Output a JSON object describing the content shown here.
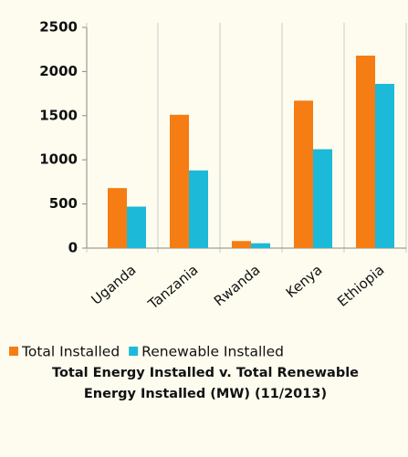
{
  "chart_data": {
    "type": "bar",
    "title": "Total Energy Installed v. Total Renewable Energy Installed (MW) (11/2013)",
    "categories": [
      "Uganda",
      "Tanzania",
      "Rwanda",
      "Kenya",
      "Ethiopia"
    ],
    "series": [
      {
        "name": "Total Installed",
        "color": "#f57d13",
        "values": [
          680,
          1510,
          80,
          1670,
          2180
        ]
      },
      {
        "name": "Renewable Installed",
        "color": "#1db9d9",
        "values": [
          470,
          880,
          55,
          1120,
          1860
        ]
      }
    ],
    "ylim": [
      0,
      2500
    ],
    "yticks": [
      0,
      500,
      1000,
      1500,
      2000,
      2500
    ],
    "grid": false
  }
}
